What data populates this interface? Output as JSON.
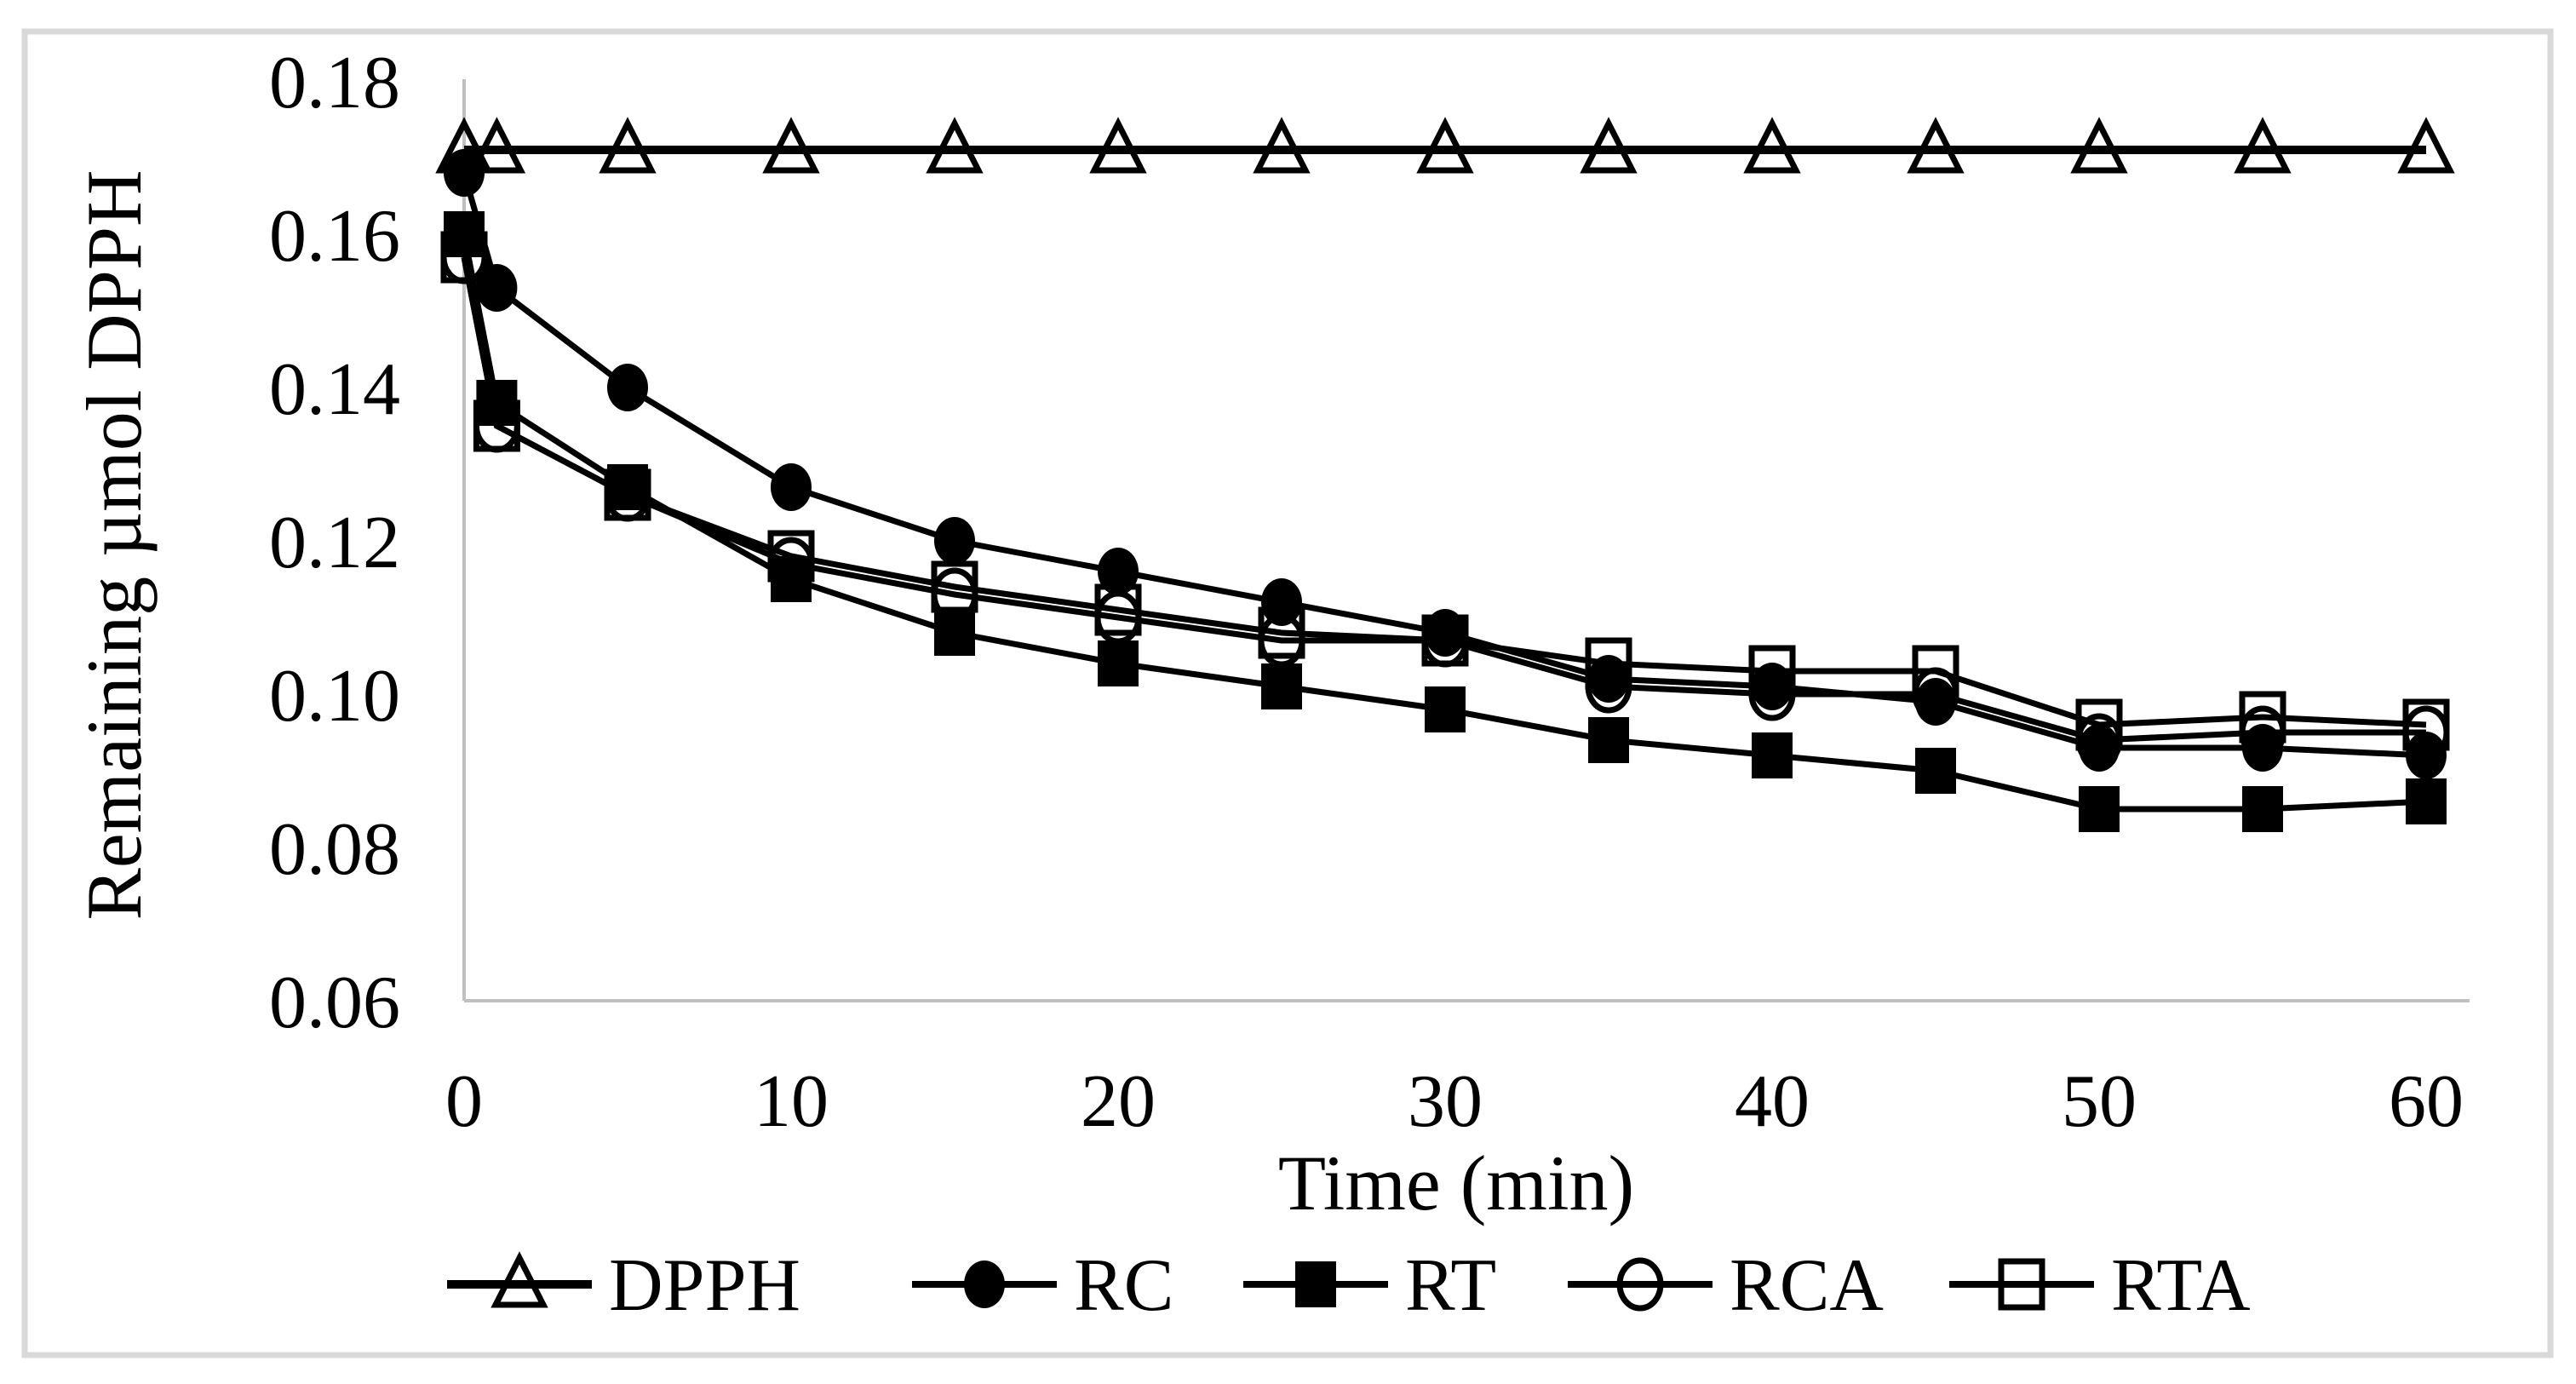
{
  "figure": {
    "background": "#ffffff",
    "border_color": "#d9d9d9"
  },
  "chart_data": {
    "type": "line",
    "title": "",
    "xlabel": "Time (min)",
    "ylabel": "Remaining µmol DPPH",
    "xlim": [
      0,
      60
    ],
    "ylim": [
      0.06,
      0.18
    ],
    "x_ticks": [
      0,
      10,
      20,
      30,
      40,
      50,
      60
    ],
    "y_ticks": [
      "0.06",
      "0.08",
      "0.10",
      "0.12",
      "0.14",
      "0.16",
      "0.18"
    ],
    "grid": false,
    "legend_position": "bottom",
    "series_color": "#000000",
    "axis_color": "#c0c0c0",
    "x": [
      0,
      1,
      5,
      10,
      15,
      20,
      25,
      30,
      35,
      40,
      45,
      50,
      55,
      60
    ],
    "series": [
      {
        "name": "DPPH",
        "marker": "open-triangle",
        "values": [
          0.171,
          0.171,
          0.171,
          0.171,
          0.171,
          0.171,
          0.171,
          0.171,
          0.171,
          0.171,
          0.171,
          0.171,
          0.171,
          0.171
        ]
      },
      {
        "name": "RC",
        "marker": "filled-circle",
        "values": [
          0.168,
          0.153,
          0.14,
          0.127,
          0.12,
          0.116,
          0.112,
          0.108,
          0.102,
          0.101,
          0.099,
          0.093,
          0.093,
          0.092
        ]
      },
      {
        "name": "RT",
        "marker": "filled-square",
        "values": [
          0.16,
          0.138,
          0.127,
          0.115,
          0.108,
          0.104,
          0.101,
          0.098,
          0.094,
          0.092,
          0.09,
          0.085,
          0.085,
          0.086
        ]
      },
      {
        "name": "RCA",
        "marker": "open-circle",
        "values": [
          0.157,
          0.135,
          0.126,
          0.117,
          0.113,
          0.11,
          0.107,
          0.107,
          0.101,
          0.1,
          0.1,
          0.094,
          0.095,
          0.095
        ]
      },
      {
        "name": "RTA",
        "marker": "open-square",
        "values": [
          0.157,
          0.135,
          0.126,
          0.118,
          0.114,
          0.111,
          0.108,
          0.107,
          0.104,
          0.103,
          0.103,
          0.096,
          0.097,
          0.096
        ]
      }
    ]
  }
}
